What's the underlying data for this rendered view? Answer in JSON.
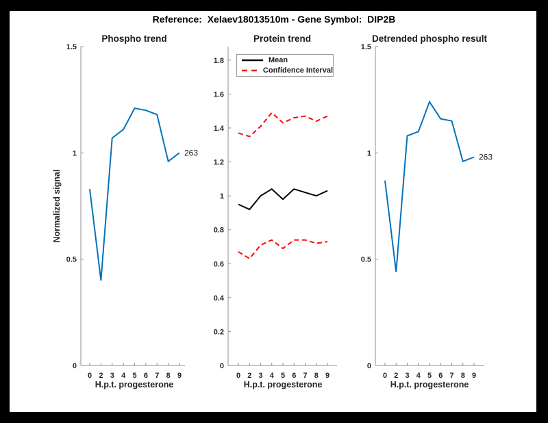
{
  "figure": {
    "title": "Reference:  Xelaev18013510m - Gene Symbol:  DIP2B",
    "background_color": "#000000",
    "canvas_color": "#ffffff",
    "axis_color": "#8c8c8c",
    "accent_blue": "#0072BD",
    "accent_red": "#FF0000"
  },
  "chart_data": [
    {
      "type": "line",
      "title": "Phospho trend",
      "xlabel": "H.p.t. progesterone",
      "ylabel": "Normalized signal",
      "x_ticks": [
        "0",
        "2",
        "3",
        "4",
        "5",
        "6",
        "7",
        "8",
        "9"
      ],
      "y_ticks": [
        "0",
        "0.5",
        "1",
        "1.5"
      ],
      "y_tick_values": [
        0,
        0.5,
        1,
        1.5
      ],
      "ylim": [
        0,
        1.5
      ],
      "grid": false,
      "series": [
        {
          "name": "phospho-signal",
          "color": "#0072BD",
          "style": "solid",
          "values": [
            0.83,
            0.4,
            1.07,
            1.11,
            1.21,
            1.2,
            1.18,
            0.96,
            1.0
          ]
        }
      ],
      "end_label": "263",
      "legend": null
    },
    {
      "type": "line",
      "title": "Protein trend",
      "xlabel": "H.p.t. progesterone",
      "ylabel": "",
      "x_ticks": [
        "0",
        "2",
        "3",
        "4",
        "5",
        "6",
        "7",
        "8",
        "9"
      ],
      "y_ticks": [
        "0",
        "0.2",
        "0.4",
        "0.6",
        "0.8",
        "1",
        "1.2",
        "1.4",
        "1.6",
        "1.8"
      ],
      "y_tick_values": [
        0,
        0.2,
        0.4,
        0.6,
        0.8,
        1,
        1.2,
        1.4,
        1.6,
        1.8
      ],
      "ylim": [
        0,
        1.88
      ],
      "grid": false,
      "series": [
        {
          "name": "mean",
          "color": "#000000",
          "style": "solid",
          "values": [
            0.95,
            0.92,
            1.0,
            1.04,
            0.98,
            1.04,
            1.02,
            1.0,
            1.03
          ]
        },
        {
          "name": "confidence-interval-upper",
          "color": "#FF0000",
          "style": "dashed",
          "values": [
            1.37,
            1.35,
            1.41,
            1.49,
            1.43,
            1.46,
            1.47,
            1.44,
            1.47
          ]
        },
        {
          "name": "confidence-interval-lower",
          "color": "#FF0000",
          "style": "dashed",
          "values": [
            0.67,
            0.63,
            0.71,
            0.74,
            0.69,
            0.74,
            0.74,
            0.72,
            0.73
          ]
        }
      ],
      "end_label": null,
      "legend": {
        "position": "northwest",
        "entries": [
          {
            "label": "Mean",
            "color": "#000000",
            "style": "solid"
          },
          {
            "label": "Confidence Interval",
            "color": "#FF0000",
            "style": "dashed"
          }
        ]
      }
    },
    {
      "type": "line",
      "title": "Detrended phospho result",
      "xlabel": "H.p.t. progesterone",
      "ylabel": "",
      "x_ticks": [
        "0",
        "2",
        "3",
        "4",
        "5",
        "6",
        "7",
        "8",
        "9"
      ],
      "y_ticks": [
        "0",
        "0.5",
        "1",
        "1.5"
      ],
      "y_tick_values": [
        0,
        0.5,
        1,
        1.5
      ],
      "ylim": [
        0,
        1.5
      ],
      "grid": false,
      "series": [
        {
          "name": "detrended-phospho-signal",
          "color": "#0072BD",
          "style": "solid",
          "values": [
            0.87,
            0.44,
            1.08,
            1.1,
            1.24,
            1.16,
            1.15,
            0.96,
            0.98
          ]
        }
      ],
      "end_label": "263",
      "legend": null
    }
  ]
}
